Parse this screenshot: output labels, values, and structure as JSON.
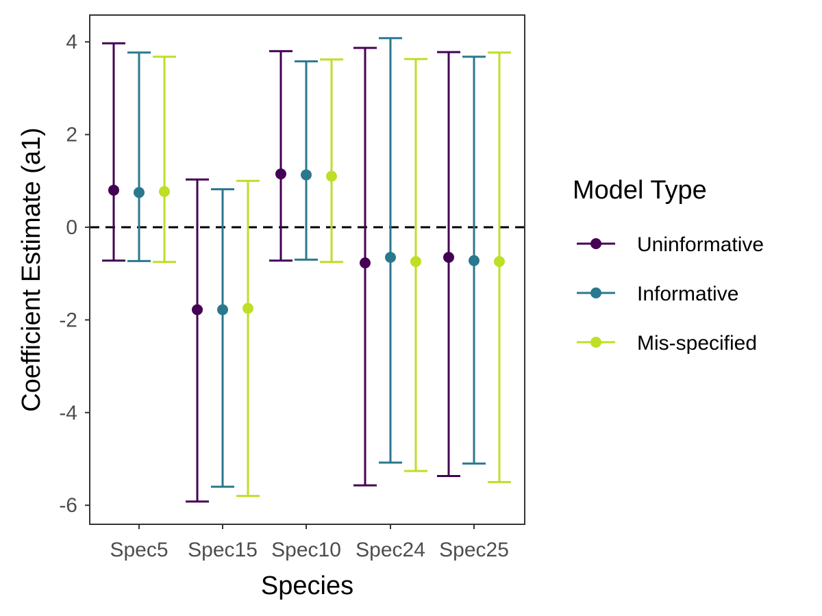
{
  "chart_data": {
    "type": "errorbar",
    "xlabel": "Species",
    "ylabel": "Coefficient Estimate (a1)",
    "categories": [
      "Spec5",
      "Spec15",
      "Spec10",
      "Spec24",
      "Spec25"
    ],
    "ylim": [
      -6.4,
      4.6
    ],
    "yticks": [
      4,
      2,
      0,
      -2,
      -4,
      -6
    ],
    "reference_line": {
      "y": 0,
      "style": "dashed",
      "color": "#000000"
    },
    "legend": {
      "title": "Model Type",
      "position": "right"
    },
    "series": [
      {
        "name": "Uninformative",
        "color": "#440154",
        "estimate": [
          0.8,
          -1.78,
          1.15,
          -0.77,
          -0.65
        ],
        "lower": [
          -0.72,
          -5.92,
          -0.72,
          -5.57,
          -5.37
        ],
        "upper": [
          3.97,
          1.03,
          3.8,
          3.87,
          3.78
        ]
      },
      {
        "name": "Informative",
        "color": "#2A788E",
        "estimate": [
          0.75,
          -1.78,
          1.13,
          -0.65,
          -0.72
        ],
        "lower": [
          -0.73,
          -5.6,
          -0.7,
          -5.08,
          -5.1
        ],
        "upper": [
          3.77,
          0.82,
          3.58,
          4.08,
          3.68
        ]
      },
      {
        "name": "Mis-specified",
        "color": "#BDDF26",
        "estimate": [
          0.77,
          -1.75,
          1.1,
          -0.74,
          -0.74
        ],
        "lower": [
          -0.75,
          -5.8,
          -0.75,
          -5.26,
          -5.5
        ],
        "upper": [
          3.68,
          1.0,
          3.62,
          3.63,
          3.77
        ]
      }
    ]
  }
}
